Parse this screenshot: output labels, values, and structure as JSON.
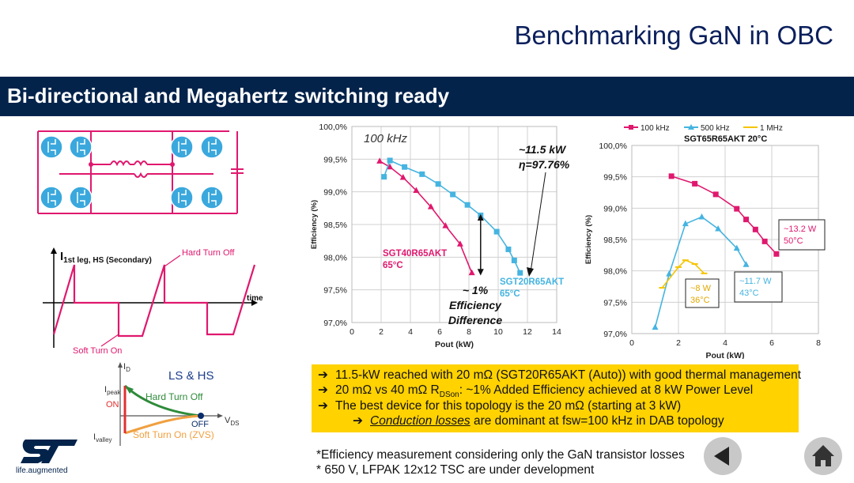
{
  "header": {
    "title": "Benchmarking GaN in OBC"
  },
  "banner": {
    "subtitle": "Bi-directional and Megahertz switching ready"
  },
  "waveform": {
    "signal_main": "I",
    "signal_sub": "1st leg, HS (Secondary)",
    "hard_turn_off": "Hard Turn Off",
    "soft_turn_on": "Soft Turn On",
    "time_axis": "time"
  },
  "vi_plot": {
    "id_main": "I",
    "id_sub": "D",
    "vds_main": "V",
    "vds_sub": "DS",
    "ipeak_main": "I",
    "ipeak_sub": "peak",
    "ivalley_main": "I",
    "ivalley_sub": "valley",
    "on_label": "ON",
    "off_label": "OFF",
    "ls_hs": "LS & HS",
    "hard_turn_off": "Hard Turn Off",
    "soft_turn_on_zvs": "Soft Turn On (ZVS)"
  },
  "logo": {
    "tagline": "life.augmented"
  },
  "chart_data": [
    {
      "type": "line",
      "title": "100 kHz",
      "xlabel": "Pout (kW)",
      "ylabel": "Efficiency (%)",
      "xlim": [
        0,
        14
      ],
      "ylim": [
        97.0,
        100.0
      ],
      "x_ticks": [
        "0",
        "2",
        "4",
        "6",
        "8",
        "10",
        "12",
        "14"
      ],
      "y_ticks": [
        "97,0%",
        "97,5%",
        "98,0%",
        "98,5%",
        "99,0%",
        "99,5%",
        "100,0%"
      ],
      "grid": true,
      "series": [
        {
          "name": "SGT40R65AKT",
          "temp": "65°C",
          "color": "#e0186e",
          "x": [
            1.9,
            2.6,
            3.5,
            4.4,
            5.4,
            6.4,
            7.4,
            8.2
          ],
          "y": [
            99.47,
            99.38,
            99.22,
            99.02,
            98.77,
            98.48,
            98.2,
            97.76
          ]
        },
        {
          "name": "SGT20R65AKT",
          "temp": "65°C",
          "color": "#45b4e0",
          "x": [
            2.2,
            2.6,
            3.6,
            4.8,
            5.9,
            6.9,
            7.9,
            8.8,
            9.9,
            10.7,
            11.1,
            11.5
          ],
          "y": [
            99.23,
            99.48,
            99.38,
            99.27,
            99.12,
            98.96,
            98.8,
            98.64,
            98.39,
            98.12,
            97.95,
            97.76
          ]
        }
      ],
      "annotations": {
        "power_line1": "~11.5 kW",
        "power_line2": "η=97.76%",
        "diff_line1": "~ 1%",
        "diff_line2": "Efficiency",
        "diff_line3": "Difference"
      }
    },
    {
      "type": "line",
      "title": "SGT65R65AKT 20°C",
      "xlabel": "Pout (kW)",
      "ylabel": "Efficiency (%)",
      "xlim": [
        0,
        8
      ],
      "ylim": [
        97.0,
        100.0
      ],
      "x_ticks": [
        "0",
        "2",
        "4",
        "6",
        "8"
      ],
      "y_ticks": [
        "97,0%",
        "97,5%",
        "98,0%",
        "98,5%",
        "99,0%",
        "99,5%",
        "100,0%"
      ],
      "grid": true,
      "legend": [
        "100 kHz",
        "500 kHz",
        "1 MHz"
      ],
      "series": [
        {
          "name": "100 kHz",
          "color": "#e0186e",
          "x": [
            1.7,
            2.7,
            3.6,
            4.5,
            4.9,
            5.3,
            5.7,
            6.2
          ],
          "y": [
            99.51,
            99.39,
            99.22,
            98.99,
            98.82,
            98.66,
            98.47,
            98.27
          ]
        },
        {
          "name": "500 kHz",
          "color": "#45b4e0",
          "x": [
            1.0,
            1.6,
            2.3,
            3.0,
            3.7,
            4.5,
            4.9
          ],
          "y": [
            97.1,
            97.95,
            98.75,
            98.86,
            98.67,
            98.36,
            98.1
          ]
        },
        {
          "name": "1 MHz",
          "color": "#f5c400",
          "x": [
            1.3,
            2.0,
            2.3,
            2.7,
            3.1
          ],
          "y": [
            97.73,
            98.06,
            98.17,
            98.11,
            97.96
          ]
        }
      ],
      "annotations": {
        "box1_line1": "~13.2 W",
        "box1_line2": "50°C",
        "box2_line1": "~11.7 W",
        "box2_line2": "43°C",
        "box3_line1": "~8 W",
        "box3_line2": "36°C"
      }
    }
  ],
  "bullets": {
    "arrow": "➔",
    "b1": "11.5-kW reached with 20 mΩ (SGT20R65AKT (Auto)) with good thermal management",
    "b2_pre": "20 mΩ vs 40 mΩ R",
    "b2_sub": "DSon",
    "b2_post": ": ~1% Added Efficiency achieved at 8 kW Power Level",
    "b3": "The best device for this topology is the 20 mΩ (starting at 3 kW)",
    "b4_under": "Conduction losses",
    "b4_rest": " are dominant at fsw=100 kHz in DAB topology"
  },
  "footnotes": {
    "f1": "*Efficiency measurement considering only the GaN transistor losses",
    "f2": "* 650 V, LFPAK 12x12 TSC are under development"
  },
  "colors": {
    "navy": "#03234b",
    "pink": "#e0186e",
    "cyan": "#45b4e0",
    "yellow": "#ffd200",
    "green": "#2e8b3a",
    "orange": "#f0a040"
  }
}
